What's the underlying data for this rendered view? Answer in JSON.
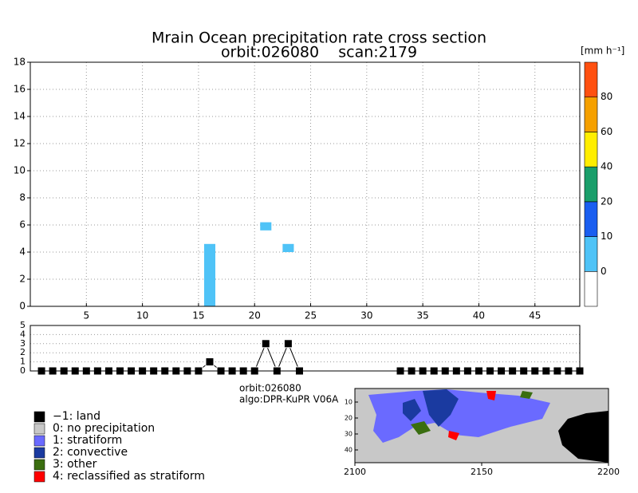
{
  "chart_data": [
    {
      "type": "heatmap",
      "title": "Mrain Ocean precipitation rate cross section",
      "subtitle": "orbit:026080    scan:2179",
      "xlim": [
        0,
        49
      ],
      "xticks": [
        5,
        10,
        15,
        20,
        25,
        30,
        35,
        40,
        45
      ],
      "ylim": [
        0,
        18
      ],
      "yticks": [
        0,
        2,
        4,
        6,
        8,
        10,
        12,
        14,
        16,
        18
      ],
      "grid": true,
      "cells": [
        {
          "x": 16,
          "y0": 0,
          "y1": 4.6,
          "value": 5
        },
        {
          "x": 21,
          "y0": 5.6,
          "y1": 6.2,
          "value": 5
        },
        {
          "x": 23,
          "y0": 4.0,
          "y1": 4.6,
          "value": 5
        }
      ],
      "colorbar": {
        "label": "[mm h⁻¹]",
        "levels": [
          0,
          10,
          20,
          40,
          60,
          80
        ],
        "colors": [
          "#ffffff",
          "#4fc3f7",
          "#1a5ef0",
          "#1a9e6a",
          "#ffee00",
          "#f5a000",
          "#ff5010"
        ]
      }
    },
    {
      "type": "line",
      "xlim": [
        0,
        49
      ],
      "ylim": [
        0,
        5
      ],
      "yticks": [
        0,
        1,
        2,
        3,
        4,
        5
      ],
      "grid": true,
      "color": "#000000",
      "x": [
        1,
        2,
        3,
        4,
        5,
        6,
        7,
        8,
        9,
        10,
        11,
        12,
        13,
        14,
        15,
        16,
        17,
        18,
        19,
        20,
        21,
        22,
        23,
        24,
        25,
        26,
        27,
        28,
        29,
        30,
        31,
        32,
        33,
        34,
        35,
        36,
        37,
        38,
        39,
        40,
        41,
        42,
        43,
        44,
        45,
        46,
        47,
        48,
        49
      ],
      "values": [
        0,
        0,
        0,
        0,
        0,
        0,
        0,
        0,
        0,
        0,
        0,
        0,
        0,
        0,
        0,
        1,
        0,
        0,
        0,
        0,
        3,
        0,
        3,
        0,
        0,
        0,
        0,
        0,
        0,
        0,
        0,
        0,
        0,
        0,
        0,
        0,
        0,
        0,
        0,
        0,
        0,
        0,
        0,
        0,
        0,
        0,
        0,
        0,
        0
      ],
      "markers": [
        true,
        true,
        true,
        true,
        true,
        true,
        true,
        true,
        true,
        true,
        true,
        true,
        true,
        true,
        true,
        true,
        true,
        true,
        true,
        true,
        true,
        true,
        true,
        true,
        false,
        false,
        false,
        false,
        false,
        false,
        false,
        false,
        true,
        true,
        true,
        true,
        true,
        true,
        true,
        true,
        true,
        true,
        true,
        true,
        true,
        true,
        true,
        true,
        true
      ]
    },
    {
      "type": "map",
      "info": [
        "orbit:026080",
        "algo:DPR-KuPR V06A"
      ],
      "legend": [
        {
          "name": "−1: land",
          "color": "#000000"
        },
        {
          "name": "0: no precipitation",
          "color": "#c8c8c8"
        },
        {
          "name": "1: stratiform",
          "color": "#6a6aff"
        },
        {
          "name": "2: convective",
          "color": "#1a3aa0"
        },
        {
          "name": "3: other",
          "color": "#3a6e10"
        },
        {
          "name": "4: reclassified as stratiform",
          "color": "#ff0000"
        }
      ],
      "xlim": [
        2100,
        2200
      ],
      "xticks": [
        2100,
        2150,
        2200
      ],
      "ylim": [
        1,
        49
      ],
      "yticks": [
        10,
        20,
        30,
        40
      ]
    }
  ]
}
